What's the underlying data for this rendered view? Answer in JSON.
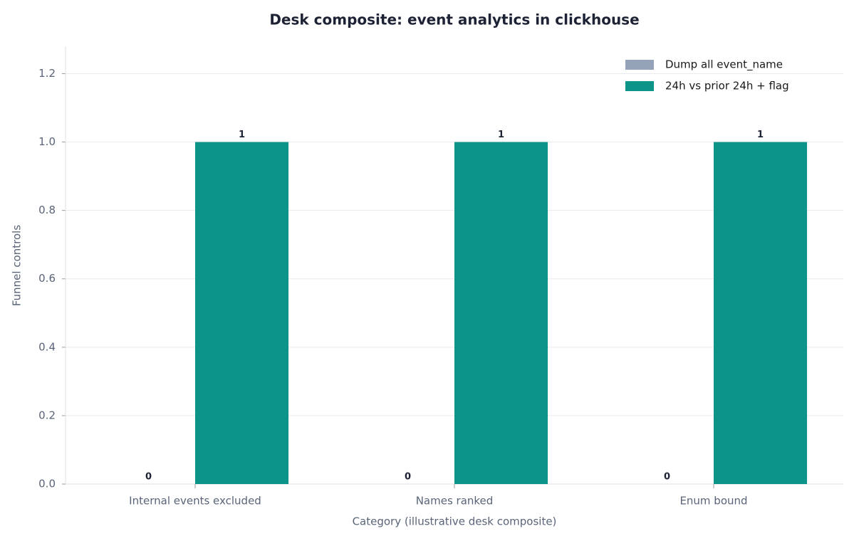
{
  "chart_data": {
    "type": "bar",
    "title": "Desk composite: event analytics in clickhouse",
    "x_label": "Category (illustrative desk composite)",
    "y_label": "Funnel controls",
    "categories": [
      "Internal events excluded",
      "Names ranked",
      "Enum bound"
    ],
    "series": [
      {
        "name": "Dump all event_name",
        "color": "#94a3b8",
        "values": [
          0,
          0,
          0
        ]
      },
      {
        "name": "24h vs prior 24h + flag",
        "color": "#0d9488",
        "values": [
          1,
          1,
          1
        ]
      }
    ],
    "ylim": [
      0,
      1.28
    ],
    "yticks": [
      {
        "value": 0,
        "label": "0.0"
      },
      0.2,
      0.4,
      0.6,
      0.8,
      {
        "value": 1,
        "label": "1.0"
      },
      1.2
    ],
    "grid": true,
    "legend": "upper-right"
  }
}
